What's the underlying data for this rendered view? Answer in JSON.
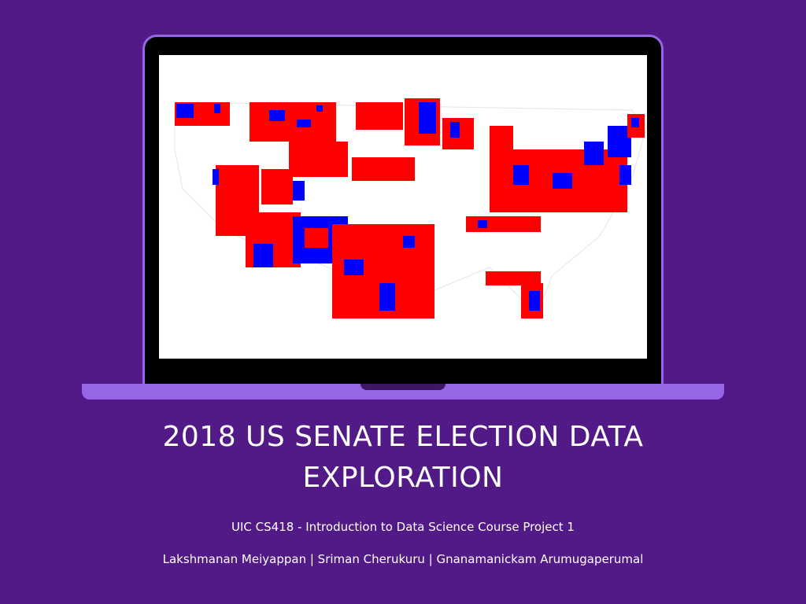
{
  "title_lines": [
    "2018 US SENATE ELECTION DATA",
    "EXPLORATION"
  ],
  "subtitle": "UIC CS418 - Introduction to Data Science Course Project 1",
  "authors": "Lakshmanan Meiyappan | Sriman Cherukuru | Gnanamanickam Arumugaperumal",
  "colors": {
    "background": "#521a86",
    "laptop_accent": "#9567e6",
    "republican": "#ff0000",
    "democrat": "#0000ff"
  },
  "map": {
    "description_icon": "us-county-map"
  }
}
